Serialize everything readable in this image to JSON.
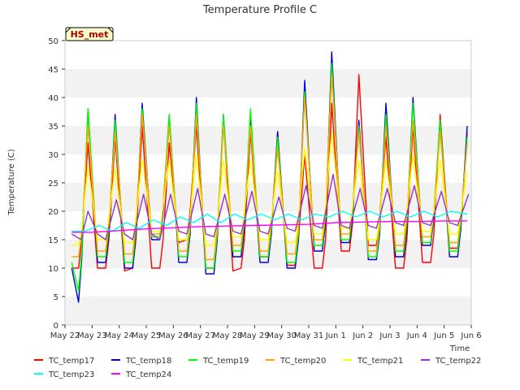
{
  "chart_data": {
    "type": "line",
    "title": "Temperature Profile C",
    "xlabel": "Time",
    "ylabel": "Temperature (C)",
    "ylim": [
      0,
      50
    ],
    "y_ticks": [
      0,
      5,
      10,
      15,
      20,
      25,
      30,
      35,
      40,
      45,
      50
    ],
    "x_ticks": [
      "May 22",
      "May 23",
      "May 24",
      "May 25",
      "May 26",
      "May 27",
      "May 28",
      "May 29",
      "May 30",
      "May 31",
      "Jun 1",
      "Jun 2",
      "Jun 3",
      "Jun 4",
      "Jun 5",
      "Jun 6"
    ],
    "grid": "banded horizontal",
    "legend_placement": "bottom",
    "site_label": "HS_met",
    "x_unit": "day index from May 22 (0 = May 22 00:00)",
    "series": [
      {
        "name": "TC_temp17",
        "color": "#ff0000",
        "x": [
          0.25,
          0.5,
          0.62,
          0.85,
          1.2,
          1.5,
          1.62,
          1.85,
          2.2,
          2.5,
          2.62,
          2.85,
          3.2,
          3.5,
          3.62,
          3.85,
          4.2,
          4.5,
          4.62,
          4.85,
          5.2,
          5.5,
          5.62,
          5.85,
          6.2,
          6.5,
          6.62,
          6.85,
          7.2,
          7.5,
          7.62,
          7.85,
          8.2,
          8.5,
          8.62,
          8.85,
          9.2,
          9.5,
          9.62,
          9.85,
          10.2,
          10.5,
          10.62,
          10.85,
          11.2,
          11.5,
          11.62,
          11.85,
          12.2,
          12.5,
          12.62,
          12.85,
          13.2,
          13.5,
          13.62,
          13.85,
          14.2,
          14.5,
          14.62,
          14.85
        ],
        "y": [
          10,
          10,
          15,
          32,
          10,
          10,
          15,
          33,
          9.5,
          10,
          15,
          35,
          10,
          10,
          15,
          32,
          14.5,
          15,
          20,
          35,
          10,
          10,
          15,
          36,
          9.5,
          10,
          15,
          34,
          12,
          12,
          17,
          34,
          10.5,
          10.5,
          15,
          30,
          10,
          10,
          15,
          39,
          13,
          13,
          18,
          44,
          14,
          14,
          19,
          33,
          10,
          10,
          15,
          35,
          11,
          11,
          16,
          37,
          13.5,
          13.5,
          18,
          34
        ]
      },
      {
        "name": "TC_temp18",
        "color": "#0000cc",
        "x": [
          0.25,
          0.5,
          0.62,
          0.85,
          1.2,
          1.5,
          1.62,
          1.85,
          2.2,
          2.5,
          2.62,
          2.85,
          3.2,
          3.5,
          3.62,
          3.85,
          4.2,
          4.5,
          4.62,
          4.85,
          5.2,
          5.5,
          5.62,
          5.85,
          6.2,
          6.5,
          6.62,
          6.85,
          7.2,
          7.5,
          7.62,
          7.85,
          8.2,
          8.5,
          8.62,
          8.85,
          9.2,
          9.5,
          9.62,
          9.85,
          10.2,
          10.5,
          10.62,
          10.85,
          11.2,
          11.5,
          11.62,
          11.85,
          12.2,
          12.5,
          12.62,
          12.85,
          13.2,
          13.5,
          13.62,
          13.85,
          14.2,
          14.5,
          14.62,
          14.85
        ],
        "y": [
          10,
          4,
          12,
          38,
          11,
          11,
          16,
          37,
          10,
          10,
          16,
          39,
          15,
          15,
          20,
          37,
          11,
          11,
          16,
          40,
          9,
          9,
          15,
          37,
          12,
          12,
          17,
          36,
          11,
          11,
          16,
          34,
          10,
          10,
          15,
          43,
          13,
          13,
          18,
          48,
          14.5,
          14.5,
          19,
          36,
          11.5,
          11.5,
          16,
          39,
          12,
          12,
          17,
          40,
          14,
          14,
          19,
          36,
          12,
          12,
          17,
          35
        ]
      },
      {
        "name": "TC_temp19",
        "color": "#00ff00",
        "x": [
          0.25,
          0.5,
          0.62,
          0.85,
          1.2,
          1.5,
          1.62,
          1.85,
          2.2,
          2.5,
          2.62,
          2.85,
          3.2,
          3.5,
          3.62,
          3.85,
          4.2,
          4.5,
          4.62,
          4.85,
          5.2,
          5.5,
          5.62,
          5.85,
          6.2,
          6.5,
          6.62,
          6.85,
          7.2,
          7.5,
          7.62,
          7.85,
          8.2,
          8.5,
          8.62,
          8.85,
          9.2,
          9.5,
          9.62,
          9.85,
          10.2,
          10.5,
          10.62,
          10.85,
          11.2,
          11.5,
          11.62,
          11.85,
          12.2,
          12.5,
          12.62,
          12.85,
          13.2,
          13.5,
          13.62,
          13.85,
          14.2,
          14.5,
          14.62,
          14.85
        ],
        "y": [
          11,
          6,
          13,
          38,
          12,
          12,
          17,
          36,
          11,
          11,
          17,
          38,
          15.5,
          15.5,
          21,
          37,
          12,
          12,
          17,
          39,
          10,
          10,
          16,
          37,
          13,
          13,
          18,
          38,
          12,
          12,
          17,
          33,
          11,
          11,
          16,
          41,
          14,
          14,
          19,
          46,
          15,
          15,
          20,
          35,
          12,
          12,
          17,
          37,
          13,
          13,
          18,
          39,
          14.5,
          14.5,
          20,
          36,
          13,
          13,
          18,
          33
        ]
      },
      {
        "name": "TC_temp20",
        "color": "#ffa500",
        "x": [
          0.25,
          0.5,
          0.62,
          0.85,
          1.2,
          1.5,
          1.62,
          1.85,
          2.2,
          2.5,
          2.62,
          2.85,
          3.2,
          3.5,
          3.62,
          3.85,
          4.2,
          4.5,
          4.62,
          4.85,
          5.2,
          5.5,
          5.62,
          5.85,
          6.2,
          6.5,
          6.62,
          6.85,
          7.2,
          7.5,
          7.62,
          7.85,
          8.2,
          8.5,
          8.62,
          8.85,
          9.2,
          9.5,
          9.62,
          9.85,
          10.2,
          10.5,
          10.62,
          10.85,
          11.2,
          11.5,
          11.62,
          11.85,
          12.2,
          12.5,
          12.62,
          12.85,
          13.2,
          13.5,
          13.62,
          13.85,
          14.2,
          14.5,
          14.62,
          14.85
        ],
        "y": [
          12,
          12,
          16,
          35,
          13,
          13,
          18,
          34,
          12.5,
          12.5,
          18,
          37,
          16,
          16,
          21,
          35,
          13,
          13,
          18,
          37,
          11.5,
          11.5,
          17,
          35,
          14,
          14,
          19,
          35,
          13,
          13,
          18,
          31,
          12.5,
          12.5,
          17,
          40,
          15,
          15,
          20,
          44,
          16,
          16,
          21,
          34,
          13,
          13,
          18,
          35,
          14,
          14,
          19,
          36,
          15.5,
          15.5,
          20,
          34,
          14.5,
          14.5,
          19,
          32
        ]
      },
      {
        "name": "TC_temp21",
        "color": "#ffff00",
        "x": [
          0.25,
          0.5,
          0.62,
          0.85,
          1.2,
          1.5,
          1.62,
          1.85,
          2.2,
          2.5,
          2.62,
          2.85,
          3.2,
          3.5,
          3.62,
          3.85,
          4.2,
          4.5,
          4.62,
          4.85,
          5.2,
          5.5,
          5.62,
          5.85,
          6.2,
          6.5,
          6.62,
          6.85,
          7.2,
          7.5,
          7.62,
          7.85,
          8.2,
          8.5,
          8.62,
          8.85,
          9.2,
          9.5,
          9.62,
          9.85,
          10.2,
          10.5,
          10.62,
          10.85,
          11.2,
          11.5,
          11.62,
          11.85,
          12.2,
          12.5,
          12.62,
          12.85,
          13.2,
          13.5,
          13.62,
          13.85,
          14.2,
          14.5,
          14.62,
          14.85
        ],
        "y": [
          14,
          14,
          17,
          28,
          15,
          15,
          19,
          27.5,
          14.5,
          14.5,
          19,
          29,
          16.5,
          16.5,
          21,
          29,
          15,
          15,
          19,
          30,
          14,
          14,
          18,
          29,
          15.5,
          15.5,
          20,
          29,
          15,
          15,
          19,
          27,
          14.5,
          14.5,
          19,
          31,
          16,
          16,
          21,
          34,
          17,
          17,
          21,
          29,
          15,
          15,
          19,
          29,
          16,
          16,
          20,
          30,
          16.5,
          16.5,
          20,
          29,
          16,
          16,
          20,
          27
        ]
      },
      {
        "name": "TC_temp22",
        "color": "#9932cc",
        "x": [
          0.25,
          0.6,
          0.85,
          1.2,
          1.5,
          1.9,
          2.2,
          2.5,
          2.9,
          3.2,
          3.5,
          3.9,
          4.2,
          4.5,
          4.9,
          5.2,
          5.5,
          5.9,
          6.2,
          6.5,
          6.9,
          7.2,
          7.5,
          7.9,
          8.2,
          8.5,
          8.9,
          9.2,
          9.5,
          9.9,
          10.2,
          10.5,
          10.9,
          11.2,
          11.5,
          11.9,
          12.2,
          12.5,
          12.9,
          13.2,
          13.5,
          13.9,
          14.2,
          14.5,
          14.9
        ],
        "y": [
          16,
          15,
          20,
          16,
          15,
          22,
          16,
          15,
          23,
          16,
          15,
          23,
          16.5,
          16,
          24,
          16,
          15.5,
          23,
          16.5,
          16,
          23.5,
          16.5,
          16,
          22.5,
          17,
          16.5,
          24.5,
          17.5,
          17,
          26.5,
          17.5,
          17,
          24,
          17.5,
          17,
          24,
          18,
          17.5,
          24.5,
          18,
          17.5,
          23.5,
          18,
          17.5,
          23
        ]
      },
      {
        "name": "TC_temp23",
        "color": "#00ffff",
        "x": [
          0.25,
          0.75,
          1.25,
          1.75,
          2.25,
          2.75,
          3.25,
          3.75,
          4.25,
          4.75,
          5.25,
          5.75,
          6.25,
          6.75,
          7.25,
          7.75,
          8.25,
          8.75,
          9.25,
          9.75,
          10.25,
          10.75,
          11.25,
          11.75,
          12.25,
          12.75,
          13.25,
          13.75,
          14.25,
          14.85
        ],
        "y": [
          16.5,
          16.5,
          17.5,
          16.5,
          18,
          17,
          18.5,
          17.5,
          19,
          18,
          19.5,
          18,
          19.5,
          18.5,
          19.5,
          18.5,
          19.5,
          18.5,
          19.5,
          19,
          20,
          19,
          20,
          19,
          20,
          19,
          20,
          19,
          20,
          19.5
        ]
      },
      {
        "name": "TC_temp24",
        "color": "#ff00ff",
        "x": [
          0.25,
          1,
          2,
          3,
          4,
          5,
          6,
          7,
          8,
          9,
          10,
          11,
          12,
          13,
          14,
          14.85
        ],
        "y": [
          16.3,
          16.3,
          16.6,
          16.9,
          17.1,
          17.3,
          17.4,
          17.5,
          17.6,
          17.7,
          18,
          18.1,
          18.2,
          18.2,
          18.3,
          18.3
        ]
      }
    ]
  }
}
